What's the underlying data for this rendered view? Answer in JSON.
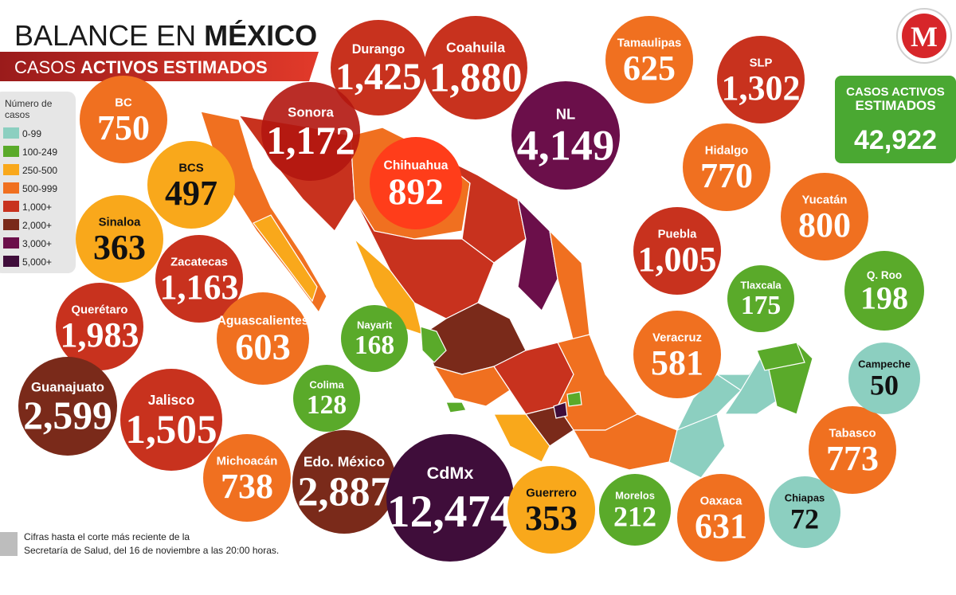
{
  "header": {
    "title_regular": "BALANCE EN",
    "title_bold": "MÉXICO",
    "subtitle_regular": "CASOS",
    "subtitle_bold": "ACTIVOS ESTIMADOS"
  },
  "logo": {
    "text": "M"
  },
  "legend": {
    "title": [
      "Número de",
      "casos"
    ],
    "items": [
      {
        "label": "0-99",
        "color": "#8ccfc0"
      },
      {
        "label": "100-249",
        "color": "#5aaa2a"
      },
      {
        "label": "250-500",
        "color": "#f9a81b"
      },
      {
        "label": "500-999",
        "color": "#f07020"
      },
      {
        "label": "1,000+",
        "color": "#c8321e"
      },
      {
        "label": "2,000+",
        "color": "#7a2a1a"
      },
      {
        "label": "3,000+",
        "color": "#6b0f4a"
      },
      {
        "label": "5,000+",
        "color": "#3f0d3a"
      }
    ]
  },
  "total": {
    "label": [
      "CASOS ACTIVOS",
      "ESTIMADOS"
    ],
    "value": "42,922"
  },
  "states": [
    {
      "name": "BC",
      "value": "750",
      "color": "#f07020"
    },
    {
      "name": "BCS",
      "value": "497",
      "color": "#f9a81b"
    },
    {
      "name": "Sinaloa",
      "value": "363",
      "color": "#f9a81b"
    },
    {
      "name": "Zacatecas",
      "value": "1,163",
      "color": "#c8321e"
    },
    {
      "name": "Querétaro",
      "value": "1,983",
      "color": "#c8321e"
    },
    {
      "name": "Aguascalientes",
      "value": "603",
      "color": "#f07020"
    },
    {
      "name": "Guanajuato",
      "value": "2,599",
      "color": "#7a2a1a"
    },
    {
      "name": "Jalisco",
      "value": "1,505",
      "color": "#c8321e"
    },
    {
      "name": "Colima",
      "value": "128",
      "color": "#5aaa2a"
    },
    {
      "name": "Nayarit",
      "value": "168",
      "color": "#5aaa2a"
    },
    {
      "name": "Michoacán",
      "value": "738",
      "color": "#f07020"
    },
    {
      "name": "Edo. México",
      "value": "2,887",
      "color": "#7a2a1a"
    },
    {
      "name": "CdMx",
      "value": "12,474",
      "color": "#3f0d3a"
    },
    {
      "name": "Guerrero",
      "value": "353",
      "color": "#f9a81b"
    },
    {
      "name": "Morelos",
      "value": "212",
      "color": "#5aaa2a"
    },
    {
      "name": "Oaxaca",
      "value": "631",
      "color": "#f07020"
    },
    {
      "name": "Chiapas",
      "value": "72",
      "color": "#8ccfc0"
    },
    {
      "name": "Tabasco",
      "value": "773",
      "color": "#f07020"
    },
    {
      "name": "Campeche",
      "value": "50",
      "color": "#8ccfc0"
    },
    {
      "name": "Q. Roo",
      "value": "198",
      "color": "#5aaa2a"
    },
    {
      "name": "Tlaxcala",
      "value": "175",
      "color": "#5aaa2a"
    },
    {
      "name": "Veracruz",
      "value": "581",
      "color": "#f07020"
    },
    {
      "name": "Puebla",
      "value": "1,005",
      "color": "#c8321e"
    },
    {
      "name": "Yucatán",
      "value": "800",
      "color": "#f07020"
    },
    {
      "name": "Hidalgo",
      "value": "770",
      "color": "#f07020"
    },
    {
      "name": "SLP",
      "value": "1,302",
      "color": "#c8321e"
    },
    {
      "name": "Tamaulipas",
      "value": "625",
      "color": "#f07020"
    },
    {
      "name": "NL",
      "value": "4,149",
      "color": "#6b0f4a"
    },
    {
      "name": "Coahuila",
      "value": "1,880",
      "color": "#c8321e"
    },
    {
      "name": "Durango",
      "value": "1,425",
      "color": "#c8321e"
    },
    {
      "name": "Sonora",
      "value": "1,172",
      "color": "#b3160f"
    },
    {
      "name": "Chihuahua",
      "value": "892",
      "color": "#ff3d1a"
    }
  ],
  "footnote": [
    "Cifras hasta el corte más reciente de la",
    "Secretaría de Salud, del 16 de noviembre a las 20:00 horas."
  ]
}
